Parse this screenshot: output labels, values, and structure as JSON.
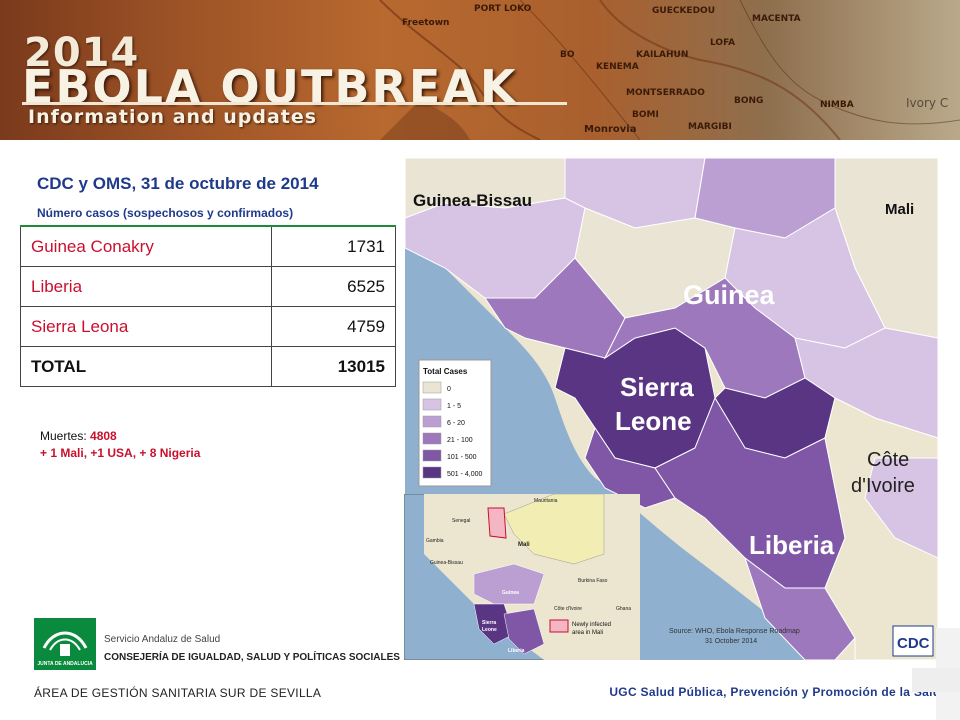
{
  "banner": {
    "year": "2014",
    "title": "EBOLA OUTBREAK",
    "subtitle": "Information and updates",
    "places": [
      "Freetown",
      "PORT LOKO",
      "GUECKEDOU",
      "MACENTA",
      "BO",
      "KAILAHUN",
      "LOFA",
      "KENEMA",
      "MONTSERRADO",
      "BONG",
      "BOMI",
      "MARGIBI",
      "NIMBA",
      "Monrovia",
      "Ivory C"
    ]
  },
  "source": "CDC y OMS, 31 de octubre de 2014",
  "subhead": "Número casos (sospechosos y confirmados)",
  "cases_table": {
    "rows": [
      {
        "country": "Guinea Conakry",
        "cases": "1731"
      },
      {
        "country": "Liberia",
        "cases": "6525"
      },
      {
        "country": "Sierra Leona",
        "cases": "4759"
      }
    ],
    "total_label": "TOTAL",
    "total_value": "13015"
  },
  "deaths": {
    "label": "Muertes:",
    "value": "4808",
    "extra": "+ 1 Mali, +1 USA, + 8 Nigeria"
  },
  "map": {
    "countries": {
      "guinea_bissau": "Guinea-Bissau",
      "mali": "Mali",
      "guinea": "Guinea",
      "sierra_1": "Sierra",
      "sierra_2": "Leone",
      "cote_1": "Côte",
      "cote_2": "d'Ivoire",
      "liberia": "Liberia"
    },
    "legend_title": "Total Cases",
    "legend": [
      {
        "label": "0",
        "color": "#e9e4d4"
      },
      {
        "label": "1 - 5",
        "color": "#d7c3e3"
      },
      {
        "label": "6 - 20",
        "color": "#bc9fd2"
      },
      {
        "label": "21 - 100",
        "color": "#9d78bd"
      },
      {
        "label": "101 - 500",
        "color": "#7f57a6"
      },
      {
        "label": "501 - 4,000",
        "color": "#5a3584"
      }
    ],
    "source_line1": "Source:  WHO, Ebola Response Roadmap",
    "source_line2": "31 October 2014",
    "cdc_logo": "CDC",
    "inset": {
      "labels": [
        "Mauritania",
        "Senegal",
        "Gambia",
        "Mali",
        "Guinea-Bissau",
        "Burkina Faso",
        "Guinea",
        "Sierra",
        "Leone",
        "Côte d'Ivoire",
        "Ghana",
        "Liberia"
      ],
      "newly_infected_1": "Newly infected",
      "newly_infected_2": "area in Mali"
    }
  },
  "footer": {
    "logo_text": "JUNTA DE ANDALUCIA",
    "sas": "Servicio Andaluz de Salud",
    "consejeria": "CONSEJERÍA DE IGUALDAD, SALUD Y POLÍTICAS SOCIALES",
    "area": "ÁREA DE GESTIÓN SANITARIA SUR DE SEVILLA",
    "ugc": "UGC Salud Pública, Prevención y Promoción de la Salud"
  },
  "colors": {
    "red": "#c8102e",
    "blue": "#1f3a8a",
    "green": "#1e8a3a",
    "water": "#8fb0cf"
  }
}
